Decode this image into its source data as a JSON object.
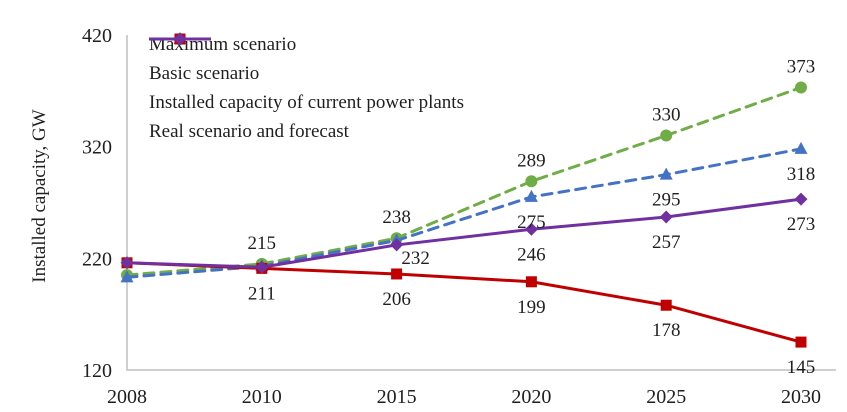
{
  "chart_data": {
    "type": "line",
    "title": "",
    "xlabel": "",
    "ylabel": "Installed capacity, GW",
    "categories": [
      "2008",
      "2010",
      "2015",
      "2020",
      "2025",
      "2030"
    ],
    "y_ticks": [
      120,
      220,
      320,
      420
    ],
    "ylim": [
      120,
      420
    ],
    "grid": false,
    "legend_position": "top-left-inside",
    "axis_color": "#bfbfbf",
    "text_color": "#1f1f1f",
    "series": [
      {
        "name": "Maximum scenario",
        "color": "#70AD47",
        "dash": true,
        "marker": "circle",
        "values": [
          205,
          215,
          238,
          289,
          330,
          373
        ],
        "labels": [
          null,
          "215",
          "238",
          "289",
          "330",
          "373"
        ],
        "label_pos": [
          null,
          "above",
          "above",
          "above",
          "above",
          "above"
        ]
      },
      {
        "name": "Basic scenario",
        "color": "#4472C4",
        "dash": true,
        "marker": "triangle",
        "values": [
          203,
          213,
          236,
          275,
          295,
          318
        ],
        "labels": [
          null,
          null,
          null,
          "275",
          "295",
          "318"
        ],
        "label_pos": [
          null,
          null,
          null,
          "below",
          "below",
          "below"
        ]
      },
      {
        "name": "Installed capacity of current power plants",
        "color": "#C00000",
        "dash": false,
        "marker": "square",
        "values": [
          216,
          211,
          206,
          199,
          178,
          145
        ],
        "labels": [
          null,
          "211",
          "206",
          "199",
          "178",
          "145"
        ],
        "label_pos": [
          null,
          "below",
          "below",
          "below",
          "below",
          "below"
        ]
      },
      {
        "name": "Real scenario and forecast",
        "color": "#7030A0",
        "dash": false,
        "marker": "diamond",
        "values": [
          216,
          212,
          232,
          246,
          257,
          273
        ],
        "labels": [
          null,
          null,
          "232",
          "246",
          "257",
          "273"
        ],
        "label_pos": [
          null,
          null,
          "below-right",
          "below",
          "below",
          "below"
        ]
      }
    ]
  }
}
